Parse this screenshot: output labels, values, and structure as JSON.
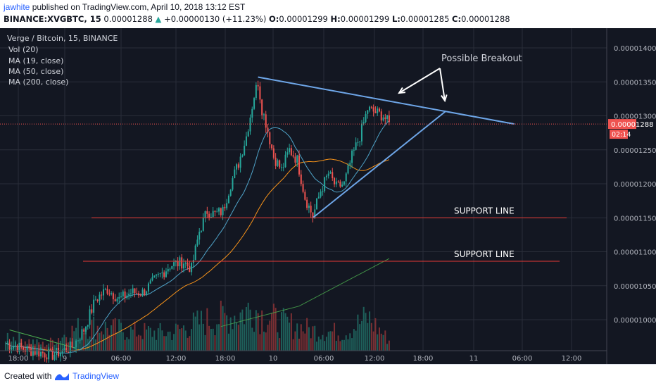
{
  "header": {
    "author": "jawhite",
    "published_text": "published on TradingView.com, April 10, 2018 13:12 EST",
    "symbol": "BINANCE:XVGBTC, 15",
    "last": "0.00001288",
    "change_arrow": "▲",
    "change": "+0.00000130 (+11.23%)",
    "o_label": "O:",
    "o": "0.00001299",
    "h_label": "H:",
    "h": "0.00001299",
    "l_label": "L:",
    "l": "0.00001285",
    "c_label": "C:",
    "c": "0.00001288"
  },
  "legend": {
    "title": "Verge / Bitcoin, 15, BINANCE",
    "vol": "Vol (20)",
    "ma19": "MA (19, close)",
    "ma50": "MA (50, close)",
    "ma200": "MA (200, close)"
  },
  "annotations": {
    "breakout": "Possible Breakout",
    "support1": "SUPPORT LINE",
    "support2": "SUPPORT LINE"
  },
  "price_badge": {
    "value": "0.00001288",
    "countdown": "02:14"
  },
  "footer": {
    "created_with": "Created with",
    "brand": "TradingView"
  },
  "colors": {
    "background": "#131722",
    "grid": "#2a2e39",
    "up": "#26a69a",
    "down": "#ef5350",
    "ma19": "#4fa3c8",
    "ma50": "#f7931a",
    "ma200": "#4caf50",
    "trendline": "#6ea6e8",
    "support": "#e53935"
  },
  "chart_data": {
    "type": "candlestick",
    "title": "Verge / Bitcoin, 15, BINANCE",
    "x_tick_labels": [
      "18:00",
      "9",
      "06:00",
      "12:00",
      "18:00",
      "10",
      "06:00",
      "12:00",
      "18:00",
      "11",
      "06:00",
      "12:00"
    ],
    "y_tick_labels": [
      "0.00001400",
      "0.00001350",
      "0.00001300",
      "0.00001250",
      "0.00001200",
      "0.00001150",
      "0.00001100",
      "0.00001050",
      "0.00001000"
    ],
    "ylim": [
      9.4e-06,
      1.42e-05
    ],
    "last_price": 1.288e-05,
    "close_path": [
      [
        0,
        9.65e-06
      ],
      [
        12,
        9.55e-06
      ],
      [
        24,
        9.48e-06
      ],
      [
        34,
        9.6e-06
      ],
      [
        40,
        9.85e-06
      ],
      [
        46,
        1.03e-05
      ],
      [
        52,
        1.045e-05
      ],
      [
        58,
        1.03e-05
      ],
      [
        64,
        1.04e-05
      ],
      [
        70,
        1.04e-05
      ],
      [
        77,
        1.06e-05
      ],
      [
        84,
        1.08e-05
      ],
      [
        91,
        1.085e-05
      ],
      [
        95,
        1.075e-05
      ],
      [
        99,
        1.13e-05
      ],
      [
        103,
        1.16e-05
      ],
      [
        107,
        1.155e-05
      ],
      [
        111,
        1.16e-05
      ],
      [
        115,
        1.2e-05
      ],
      [
        119,
        1.23e-05
      ],
      [
        123,
        1.27e-05
      ],
      [
        127,
        1.33e-05
      ],
      [
        129,
        1.35e-05
      ],
      [
        131,
        1.31e-05
      ],
      [
        133,
        1.29e-05
      ],
      [
        137,
        1.24e-05
      ],
      [
        141,
        1.22e-05
      ],
      [
        145,
        1.25e-05
      ],
      [
        149,
        1.235e-05
      ],
      [
        153,
        1.18e-05
      ],
      [
        157,
        1.152e-05
      ],
      [
        161,
        1.19e-05
      ],
      [
        165,
        1.215e-05
      ],
      [
        169,
        1.195e-05
      ],
      [
        173,
        1.2e-05
      ],
      [
        177,
        1.24e-05
      ],
      [
        181,
        1.27e-05
      ],
      [
        185,
        1.31e-05
      ],
      [
        189,
        1.305e-05
      ],
      [
        193,
        1.3e-05
      ],
      [
        196,
        1.288e-05
      ]
    ],
    "ma200_path": [
      [
        110,
        9.9e-06
      ],
      [
        150,
        1.02e-05
      ],
      [
        196,
        1.09e-05
      ]
    ],
    "volume_profile": [
      [
        0,
        0.3
      ],
      [
        20,
        0.12
      ],
      [
        40,
        0.5
      ],
      [
        52,
        0.45
      ],
      [
        64,
        0.38
      ],
      [
        84,
        0.35
      ],
      [
        99,
        0.55
      ],
      [
        111,
        0.65
      ],
      [
        119,
        0.72
      ],
      [
        127,
        0.85
      ],
      [
        131,
        0.7
      ],
      [
        141,
        0.55
      ],
      [
        157,
        0.4
      ],
      [
        173,
        0.35
      ],
      [
        185,
        0.65
      ],
      [
        196,
        0.2
      ]
    ],
    "ma19_offset": -2e-07,
    "ma50_offset": -6e-07,
    "trendlines": [
      {
        "from": [
          129,
          1.357e-05
        ],
        "to": [
          260,
          1.288e-05
        ]
      },
      {
        "from": [
          157,
          1.15e-05
        ],
        "to": [
          225,
          1.307e-05
        ]
      }
    ],
    "support_levels": [
      1.15e-05,
      1.086e-05
    ],
    "annotation_arrows": 2
  }
}
